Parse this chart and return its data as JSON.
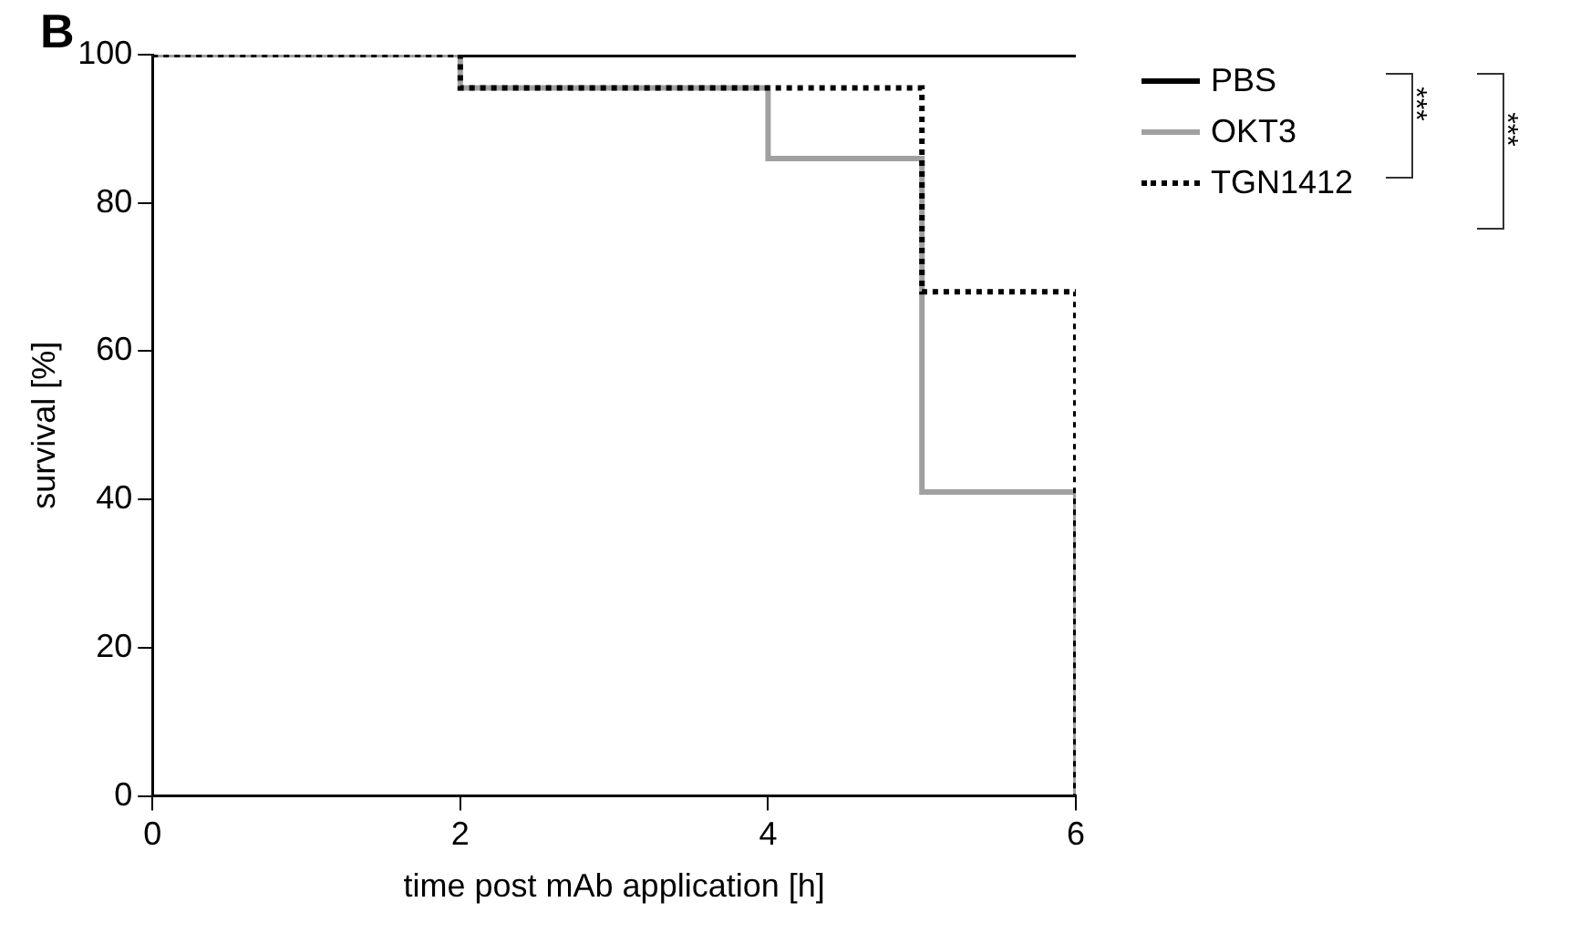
{
  "chart_data": {
    "type": "step",
    "xlabel": "time post mAb application [h]",
    "ylabel": "survival [%]",
    "xlim": [
      0,
      6
    ],
    "xticks": [
      0,
      2,
      4,
      6
    ],
    "ylim": [
      0,
      100
    ],
    "yticks": [
      0,
      20,
      40,
      60,
      80,
      100
    ],
    "grid": false,
    "legend": "top right",
    "annotations": [
      "B",
      "***",
      "***"
    ],
    "series": [
      {
        "name": "PBS",
        "color": "#000000",
        "line_style": "solid",
        "x": [
          0,
          6
        ],
        "values": [
          100,
          100
        ]
      },
      {
        "name": "OKT3",
        "color": "#a0a0a0",
        "line_style": "solid",
        "x": [
          0,
          2,
          4,
          5,
          6
        ],
        "values": [
          100,
          95.5,
          86,
          41,
          0
        ]
      },
      {
        "name": "TGN1412",
        "color": "#000000",
        "line_style": "dotted",
        "x": [
          0,
          2,
          5,
          6
        ],
        "values": [
          100,
          95.5,
          68,
          0
        ]
      }
    ]
  }
}
